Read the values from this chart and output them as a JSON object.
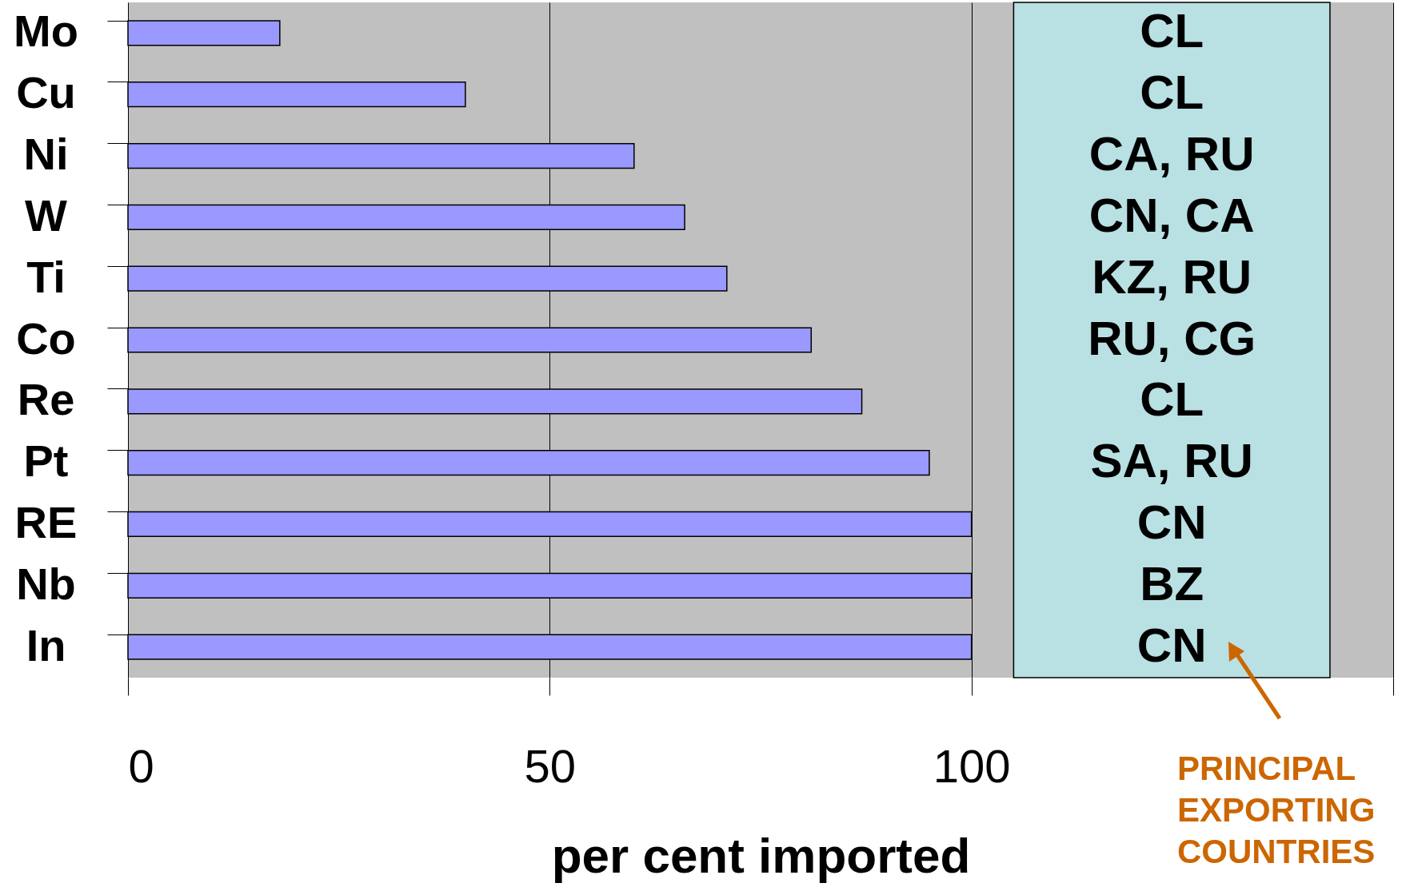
{
  "chart_data": {
    "type": "bar",
    "orientation": "horizontal",
    "xlabel": "per cent imported",
    "categories": [
      "Mo",
      "Cu",
      "Ni",
      "W",
      "Ti",
      "Co",
      "Re",
      "Pt",
      "RE",
      "Nb",
      "In"
    ],
    "values": [
      18,
      40,
      60,
      66,
      71,
      81,
      87,
      95,
      100,
      100,
      100
    ],
    "color": "#9999ff",
    "xlim": [
      0,
      150
    ],
    "xticks": [
      0,
      50,
      100,
      {
        "value": 150,
        "label": null
      }
    ],
    "grid": "x",
    "bands": [
      {
        "axis": "x",
        "from": 105,
        "to": 142.5,
        "color": "#b9e0e3"
      }
    ],
    "annotations": [
      "CL",
      "CL",
      "CA, RU",
      "CN, CA",
      "KZ, RU",
      "RU, CG",
      "CL",
      "SA, RU",
      "CN",
      "BZ",
      "CN",
      "PRINCIPAL EXPORTING COUNTRIES"
    ]
  }
}
